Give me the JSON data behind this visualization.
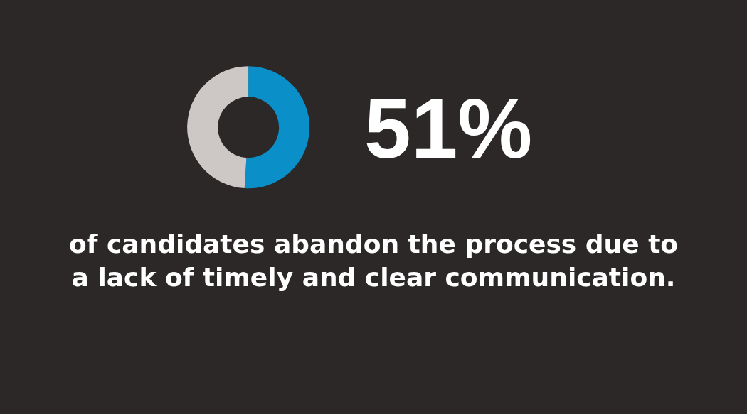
{
  "chart_data": {
    "type": "donut",
    "categories": [
      null,
      null
    ],
    "values": [
      51,
      49
    ],
    "colors": [
      "#0a8fc9",
      "#cdc8c6"
    ],
    "annotations": [
      "51%",
      "of candidates abandon the process due to a lack of timely and clear communication."
    ]
  }
}
